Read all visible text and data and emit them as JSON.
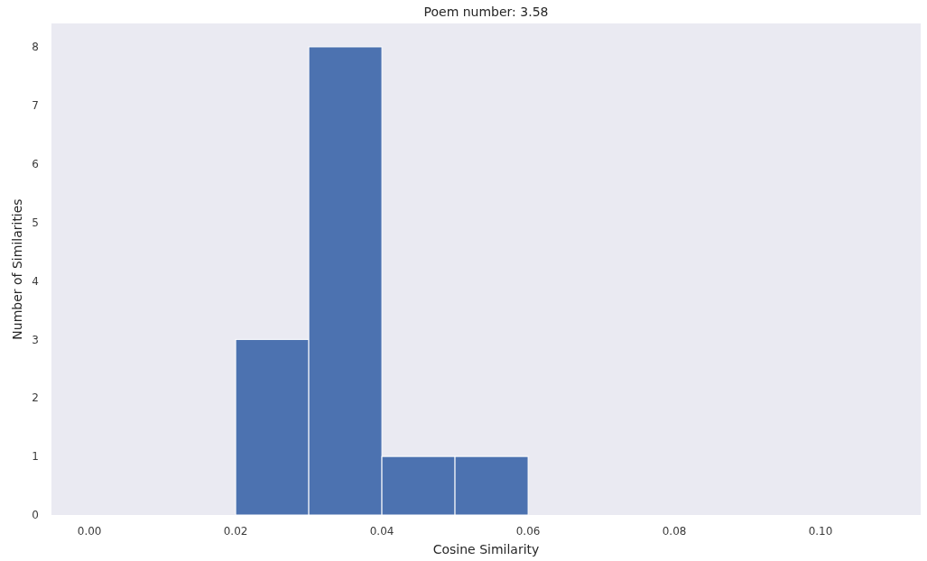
{
  "chart_data": {
    "type": "histogram",
    "title": "Poem number: 3.58",
    "xlabel": "Cosine Similarity",
    "ylabel": "Number of Similarities",
    "bins": [
      0.02,
      0.03,
      0.04,
      0.05,
      0.06
    ],
    "values": [
      3,
      8,
      1,
      1
    ],
    "color": "#4c72b0",
    "xlim": [
      -0.0052,
      0.1137
    ],
    "xticks": [
      {
        "value": 0,
        "label": "0.00"
      },
      {
        "value": 0.02,
        "label": "0.02"
      },
      {
        "value": 0.04,
        "label": "0.04"
      },
      {
        "value": 0.06,
        "label": "0.06"
      },
      {
        "value": 0.08,
        "label": "0.08"
      },
      {
        "value": 0.1,
        "label": "0.10"
      }
    ],
    "ylim": [
      0,
      8.4
    ],
    "yticks": [
      0,
      1,
      2,
      3,
      4,
      5,
      6,
      7,
      8
    ],
    "grid": false
  }
}
